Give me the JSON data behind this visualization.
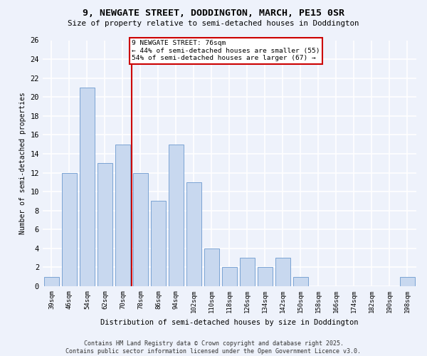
{
  "title": "9, NEWGATE STREET, DODDINGTON, MARCH, PE15 0SR",
  "subtitle": "Size of property relative to semi-detached houses in Doddington",
  "xlabel": "Distribution of semi-detached houses by size in Doddington",
  "ylabel": "Number of semi-detached properties",
  "categories": [
    "39sqm",
    "46sqm",
    "54sqm",
    "62sqm",
    "70sqm",
    "78sqm",
    "86sqm",
    "94sqm",
    "102sqm",
    "110sqm",
    "118sqm",
    "126sqm",
    "134sqm",
    "142sqm",
    "150sqm",
    "158sqm",
    "166sqm",
    "174sqm",
    "182sqm",
    "190sqm",
    "198sqm"
  ],
  "values": [
    1,
    12,
    21,
    13,
    15,
    12,
    9,
    15,
    11,
    4,
    2,
    3,
    2,
    3,
    1,
    0,
    0,
    0,
    0,
    0,
    1
  ],
  "bar_color": "#c8d8ef",
  "bar_edge_color": "#7ba3d4",
  "vline_color": "#cc0000",
  "vline_pos": 4.5,
  "annotation_text": "9 NEWGATE STREET: 76sqm\n← 44% of semi-detached houses are smaller (55)\n54% of semi-detached houses are larger (67) →",
  "annotation_box_color": "#ffffff",
  "annotation_box_edge": "#cc0000",
  "ylim": [
    0,
    26
  ],
  "yticks": [
    0,
    2,
    4,
    6,
    8,
    10,
    12,
    14,
    16,
    18,
    20,
    22,
    24,
    26
  ],
  "background_color": "#eef2fb",
  "grid_color": "#ffffff",
  "footer": "Contains HM Land Registry data © Crown copyright and database right 2025.\nContains public sector information licensed under the Open Government Licence v3.0."
}
